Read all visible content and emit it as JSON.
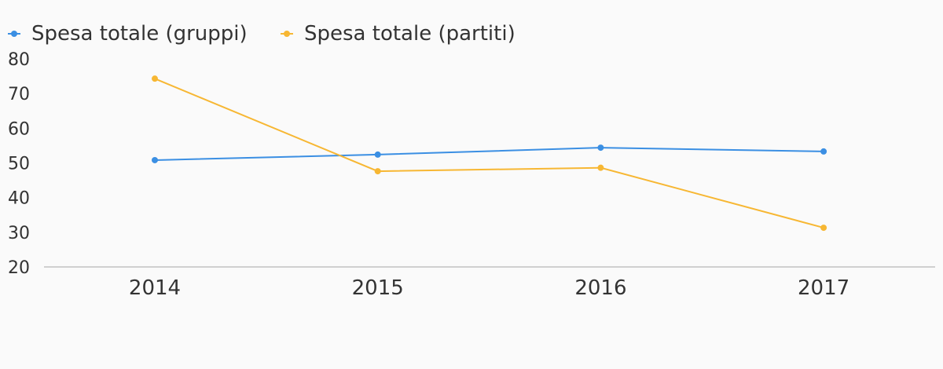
{
  "chart_data": {
    "type": "line",
    "title": "",
    "xlabel": "",
    "ylabel": "",
    "categories": [
      "2014",
      "2015",
      "2016",
      "2017"
    ],
    "ylim": [
      20,
      80
    ],
    "yticks": [
      80,
      70,
      60,
      50,
      40,
      30,
      20
    ],
    "grid": false,
    "legend": "top-left",
    "series": [
      {
        "name": "Spesa totale (gruppi)",
        "color": "#3b8fe3",
        "values": [
          50.8,
          52.4,
          54.4,
          53.3
        ]
      },
      {
        "name": "Spesa totale (partiti)",
        "color": "#f7b733",
        "values": [
          74.3,
          47.6,
          48.6,
          31.3
        ]
      }
    ]
  }
}
